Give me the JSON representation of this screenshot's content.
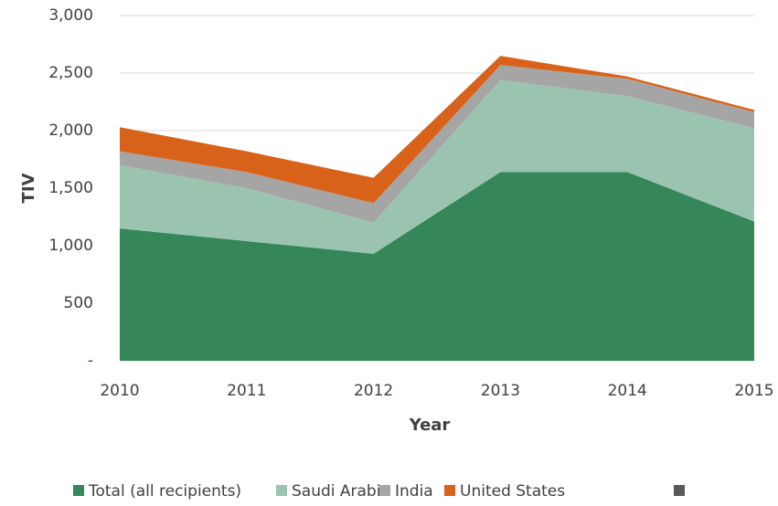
{
  "chart_data": {
    "type": "stacked_area",
    "categories": [
      "2010",
      "2011",
      "2012",
      "2013",
      "2014",
      "2015"
    ],
    "x_label": "Year",
    "y_label": "TIV",
    "series": [
      {
        "name": "Total (all recipients)",
        "color": "#358759",
        "values": [
          1150,
          1040,
          930,
          1640,
          1640,
          1210
        ]
      },
      {
        "name": "Saudi Arabia",
        "color": "#9bc4b0",
        "values": [
          550,
          460,
          270,
          800,
          660,
          810
        ]
      },
      {
        "name": "India",
        "color": "#a5a5a5",
        "values": [
          120,
          140,
          170,
          130,
          150,
          140
        ]
      },
      {
        "name": "United States",
        "color": "#d8621a",
        "values": [
          210,
          180,
          220,
          80,
          20,
          20
        ]
      },
      {
        "name": null,
        "color": "#595959",
        "values": [
          0,
          0,
          0,
          0,
          0,
          0
        ]
      }
    ],
    "ylim": [
      0,
      3000
    ],
    "yticks": [
      {
        "value": 0,
        "label": "-"
      },
      500,
      {
        "value": 1000,
        "label": "1,000"
      },
      {
        "value": 1500,
        "label": "1,500"
      },
      {
        "value": 2000,
        "label": "2,000"
      },
      {
        "value": 2500,
        "label": "2,500"
      },
      {
        "value": 3000,
        "label": "3,000"
      }
    ],
    "grid": true,
    "legend": "bottom"
  }
}
